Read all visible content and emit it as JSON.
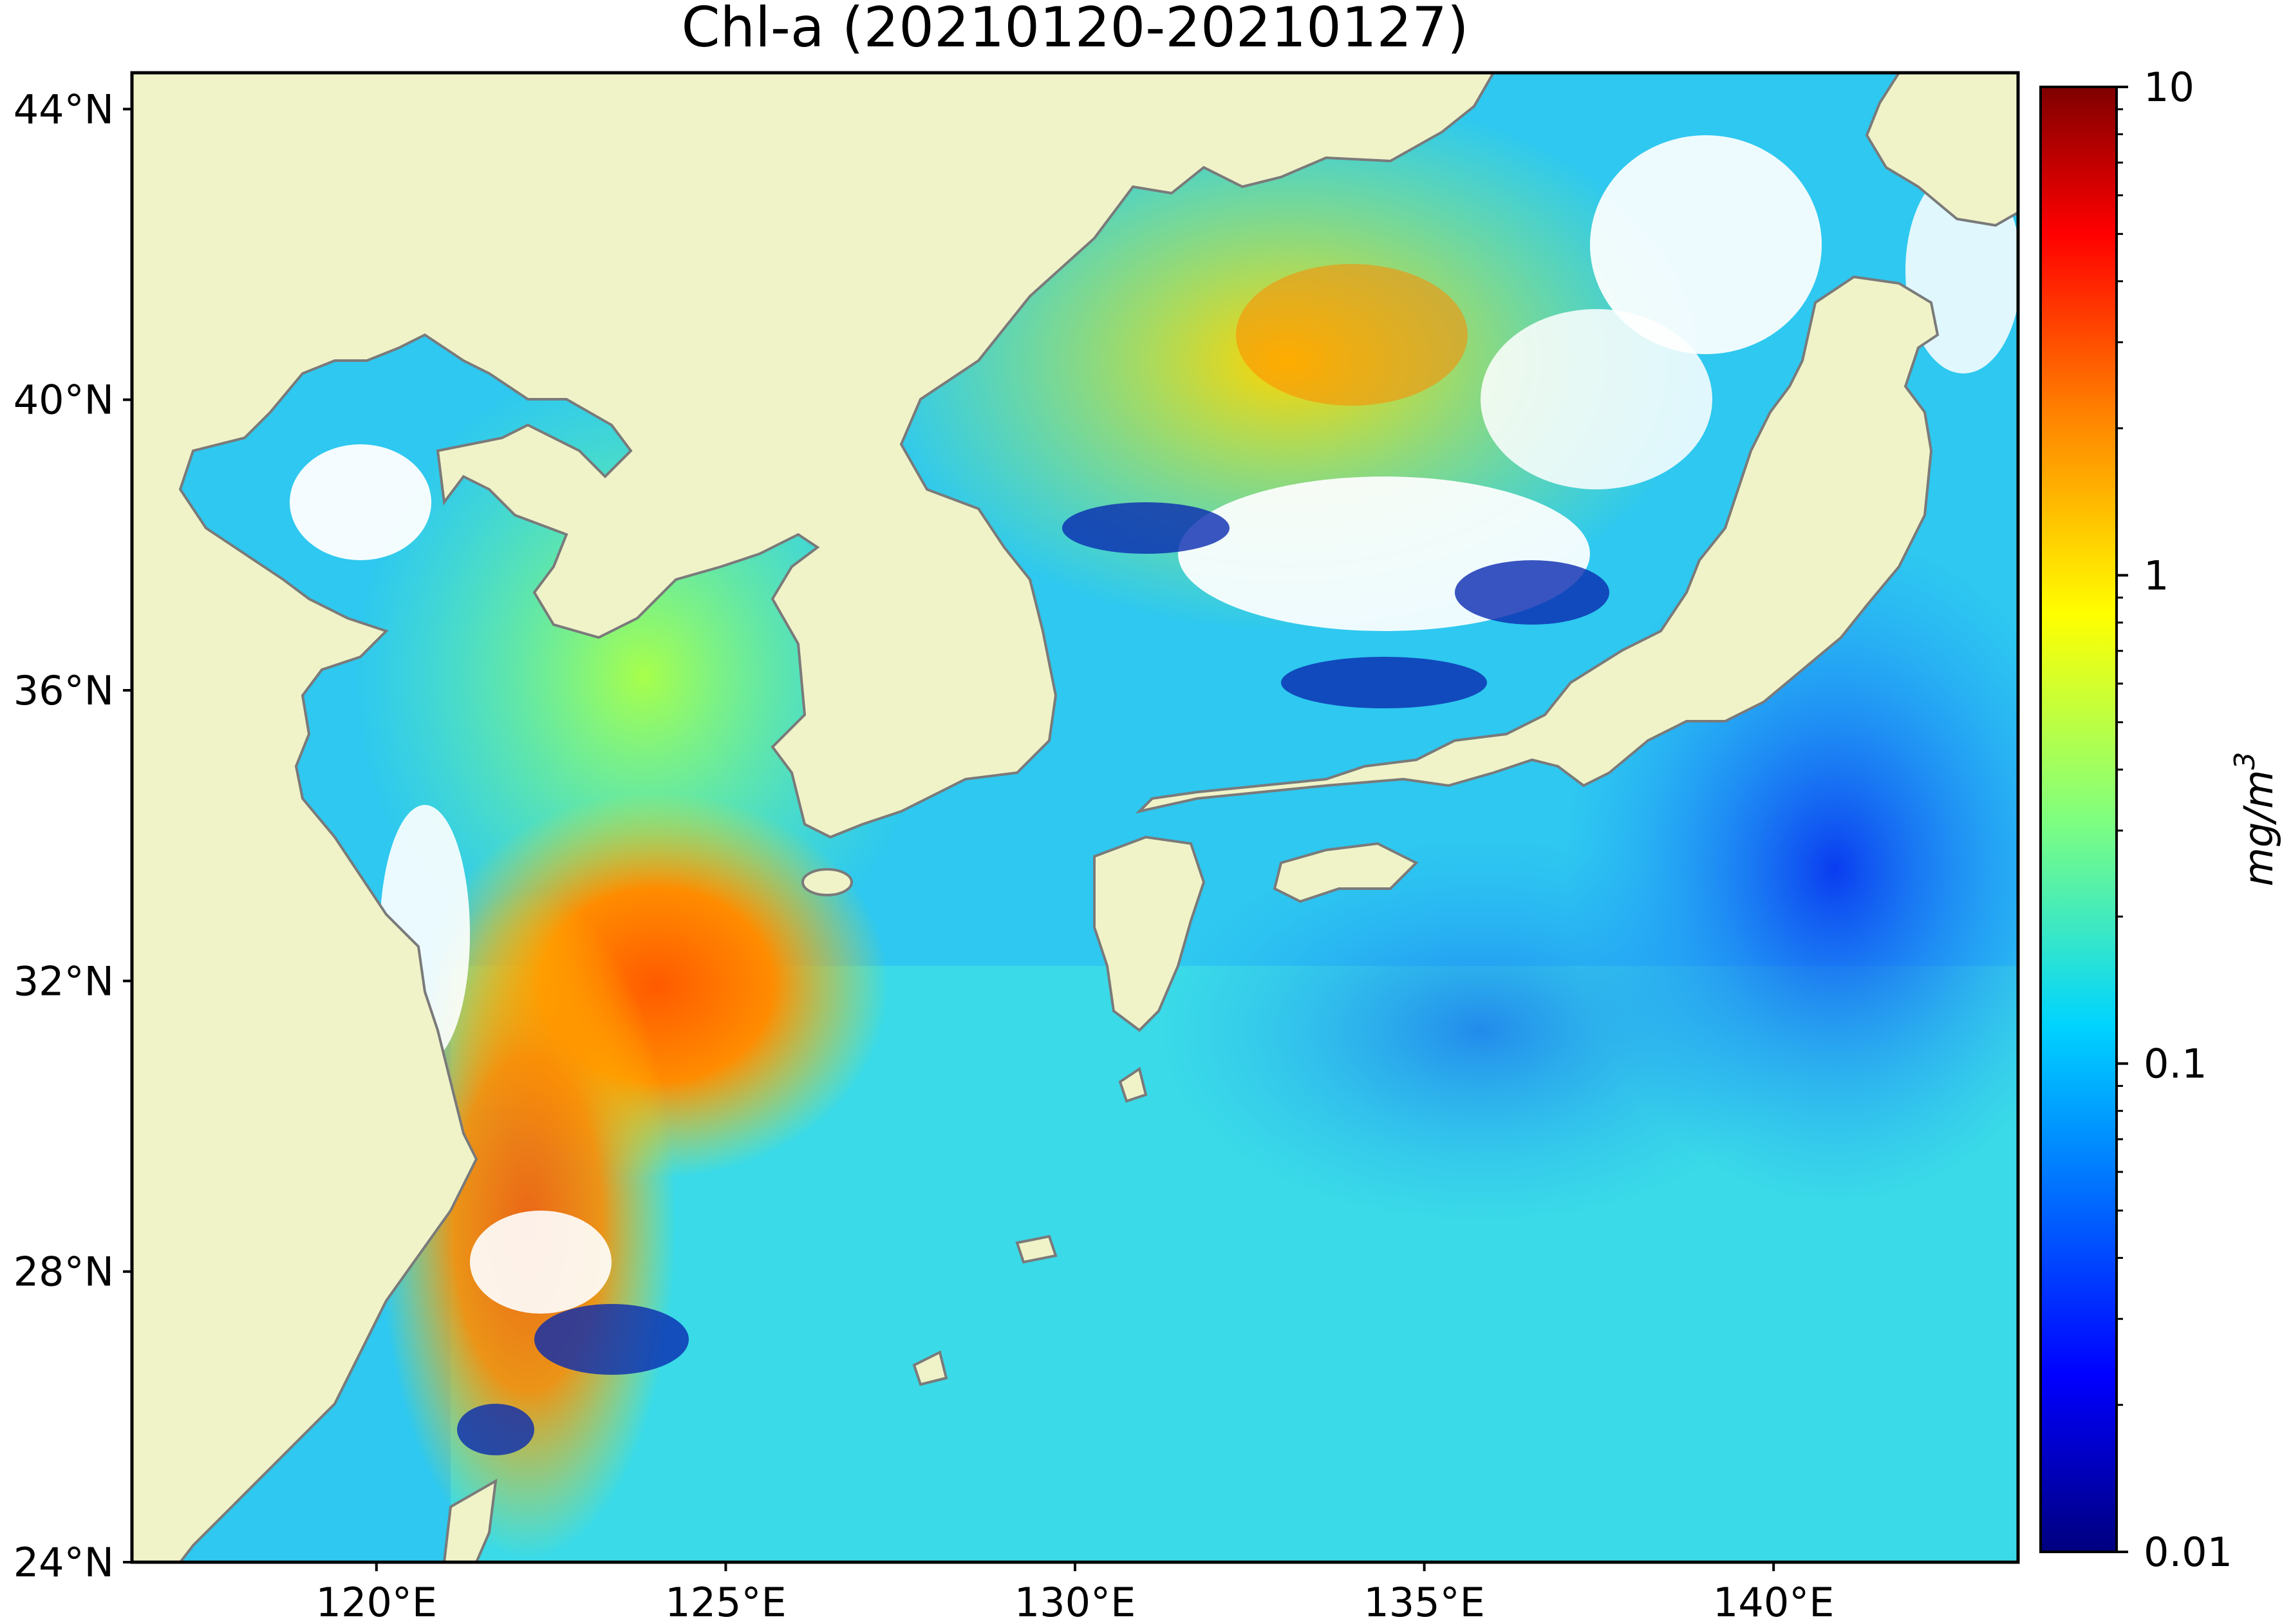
{
  "title": "Chl-a (20210120-20210127)",
  "map": {
    "land_color": "#f0f3c8",
    "no_data_color": "#ffffff",
    "coastline_color": "#7a7a7a",
    "lon_range": [
      116.5,
      143.5
    ],
    "lat_range": [
      24,
      44.5
    ],
    "lon_ticks": [
      "120°E",
      "125°E",
      "130°E",
      "135°E",
      "140°E"
    ],
    "lat_ticks": [
      "44°N",
      "40°N",
      "36°N",
      "32°N",
      "28°N",
      "24°N"
    ]
  },
  "colorbar": {
    "label": "mg/m",
    "label_superscript": "3",
    "scale": "log",
    "ticks": [
      "10",
      "1",
      "0.1",
      "0.01"
    ],
    "colormap": "jet",
    "colors": [
      "#00007f",
      "#0000ff",
      "#007fff",
      "#00ffff",
      "#7fff7f",
      "#ffff00",
      "#ff7f00",
      "#ff0000",
      "#7f0000"
    ]
  }
}
